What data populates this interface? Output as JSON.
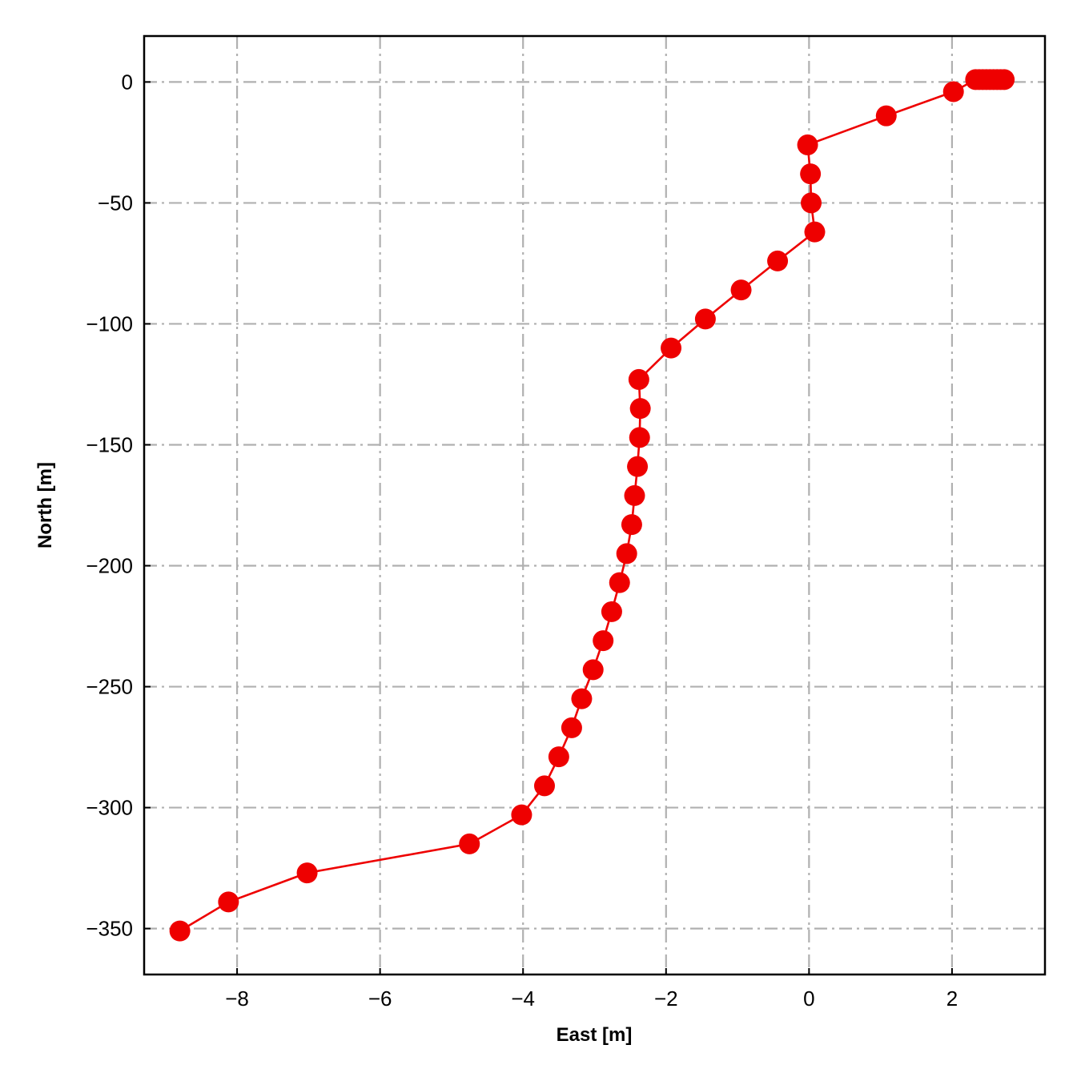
{
  "chart_data": {
    "type": "line",
    "xlabel": "East [m]",
    "ylabel": "North [m]",
    "xlim": [
      -9.3,
      3.3
    ],
    "ylim": [
      -369,
      19
    ],
    "xticks": [
      -8,
      -6,
      -4,
      -2,
      0,
      2
    ],
    "yticks": [
      0,
      -50,
      -100,
      -150,
      -200,
      -250,
      -300,
      -350
    ],
    "xtick_labels": [
      "−8",
      "−6",
      "−4",
      "−2",
      "0",
      "2"
    ],
    "ytick_labels": [
      "0",
      "−50",
      "−100",
      "−150",
      "−200",
      "−250",
      "−300",
      "−350"
    ],
    "grid": true,
    "color": "#ee0000",
    "x": [
      -8.8,
      -8.12,
      -7.02,
      -4.75,
      -4.02,
      -3.7,
      -3.5,
      -3.32,
      -3.18,
      -3.02,
      -2.88,
      -2.76,
      -2.65,
      -2.55,
      -2.48,
      -2.44,
      -2.4,
      -2.37,
      -2.36,
      -2.38,
      -1.93,
      -1.45,
      -0.95,
      -0.44,
      0.08,
      0.03,
      0.02,
      -0.02,
      1.08,
      2.02,
      2.33,
      2.38,
      2.43,
      2.48,
      2.53,
      2.58,
      2.63,
      2.68,
      2.73
    ],
    "y": [
      -351,
      -339,
      -327,
      -315,
      -303,
      -291,
      -279,
      -267,
      -255,
      -243,
      -231,
      -219,
      -207,
      -195,
      -183,
      -171,
      -159,
      -147,
      -135,
      -123,
      -110,
      -98,
      -86,
      -74,
      -62,
      -50,
      -38,
      -26,
      -14,
      -4,
      1,
      1,
      1,
      1,
      1,
      1,
      1,
      1,
      1
    ]
  }
}
